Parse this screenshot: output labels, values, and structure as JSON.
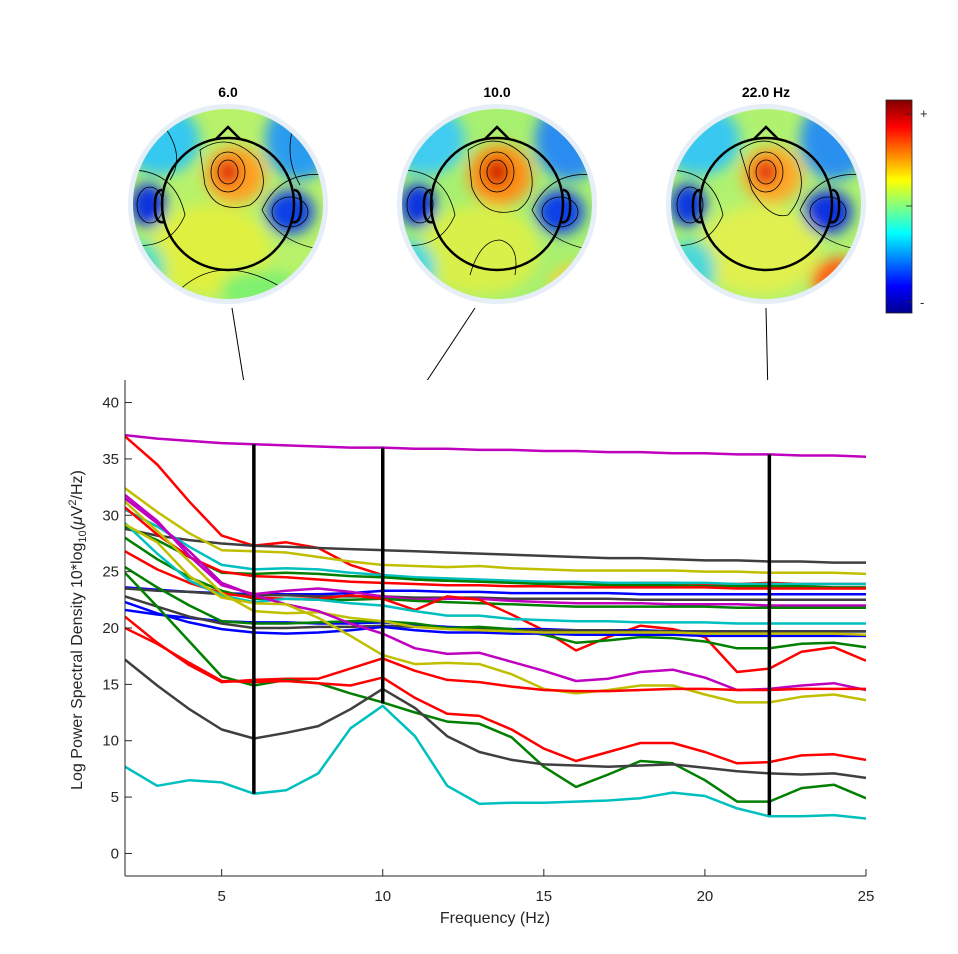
{
  "chart_data": {
    "type": "line",
    "xlabel": "Frequency (Hz)",
    "ylabel_parts": {
      "a": "Log Power Spectral Density 10*log",
      "sub": "10",
      "b": "(",
      "mu": "μ",
      "c": "V",
      "sup": "2",
      "d": "/Hz)"
    },
    "xlim": [
      2,
      25
    ],
    "ylim": [
      -2,
      42
    ],
    "xticks": [
      5,
      10,
      15,
      20,
      25
    ],
    "yticks": [
      0,
      5,
      10,
      15,
      20,
      25,
      30,
      35,
      40
    ],
    "grid": false,
    "x": [
      2,
      3,
      4,
      5,
      6,
      7,
      8,
      9,
      10,
      11,
      12,
      13,
      14,
      15,
      16,
      17,
      18,
      19,
      20,
      21,
      22,
      23,
      24,
      25
    ],
    "series": [
      {
        "color": "#BF00BF",
        "values": [
          37.1,
          36.8,
          36.6,
          36.4,
          36.3,
          36.2,
          36.1,
          36.0,
          36.0,
          35.9,
          35.9,
          35.8,
          35.8,
          35.7,
          35.7,
          35.6,
          35.6,
          35.5,
          35.5,
          35.4,
          35.4,
          35.3,
          35.3,
          35.2
        ]
      },
      {
        "color": "#FF0000",
        "values": [
          37.0,
          34.5,
          31.2,
          28.2,
          27.3,
          27.6,
          27.1,
          25.6,
          24.7,
          24.3,
          24.2,
          24.2,
          24.1,
          24.0,
          23.9,
          23.9,
          24.0,
          24.0,
          23.9,
          23.9,
          24.0,
          23.9,
          23.9,
          23.9
        ]
      },
      {
        "color": "#3F3F3F",
        "values": [
          28.8,
          28.2,
          27.8,
          27.5,
          27.3,
          27.2,
          27.1,
          27.0,
          26.9,
          26.8,
          26.7,
          26.6,
          26.5,
          26.4,
          26.3,
          26.2,
          26.2,
          26.1,
          26.0,
          26.0,
          25.9,
          25.9,
          25.8,
          25.8
        ]
      },
      {
        "color": "#BFBF00",
        "values": [
          32.4,
          30.3,
          28.4,
          26.9,
          26.8,
          26.7,
          26.3,
          25.9,
          25.6,
          25.5,
          25.4,
          25.5,
          25.3,
          25.2,
          25.1,
          25.1,
          25.1,
          25.1,
          25.0,
          25.0,
          24.9,
          24.9,
          24.9,
          24.8
        ]
      },
      {
        "color": "#00BFBF",
        "values": [
          30.5,
          29.0,
          27.2,
          25.6,
          25.2,
          25.3,
          25.2,
          24.9,
          24.7,
          24.5,
          24.4,
          24.3,
          24.2,
          24.1,
          24.1,
          24.0,
          24.0,
          24.0,
          24.0,
          23.9,
          23.9,
          23.9,
          23.9,
          23.9
        ]
      },
      {
        "color": "#007F00",
        "values": [
          29.0,
          27.8,
          26.3,
          24.9,
          24.8,
          24.9,
          24.8,
          24.6,
          24.5,
          24.3,
          24.2,
          24.1,
          24.0,
          23.9,
          23.9,
          23.8,
          23.8,
          23.8,
          23.7,
          23.7,
          23.7,
          23.7,
          23.6,
          23.6
        ]
      },
      {
        "color": "#FF0000",
        "values": [
          30.7,
          28.3,
          26.3,
          25.0,
          24.6,
          24.5,
          24.3,
          24.1,
          24.0,
          23.9,
          23.8,
          23.8,
          23.7,
          23.7,
          23.6,
          23.6,
          23.6,
          23.6,
          23.6,
          23.5,
          23.5,
          23.5,
          23.5,
          23.5
        ]
      },
      {
        "color": "#0000FF",
        "values": [
          23.6,
          23.4,
          23.2,
          23.1,
          23.0,
          23.0,
          23.0,
          23.1,
          23.3,
          23.3,
          23.2,
          23.2,
          23.1,
          23.1,
          23.1,
          23.1,
          23.0,
          23.0,
          23.0,
          23.0,
          23.0,
          23.0,
          23.0,
          23.0
        ]
      },
      {
        "color": "#3F3F3F",
        "values": [
          23.5,
          23.3,
          23.2,
          23.0,
          22.9,
          22.9,
          22.8,
          22.8,
          22.8,
          22.7,
          22.7,
          22.7,
          22.6,
          22.6,
          22.6,
          22.6,
          22.5,
          22.5,
          22.5,
          22.5,
          22.5,
          22.5,
          22.5,
          22.5
        ]
      },
      {
        "color": "#BF00BF",
        "values": [
          31.8,
          29.5,
          26.4,
          23.8,
          23.0,
          23.3,
          23.5,
          23.2,
          22.8,
          22.5,
          22.6,
          22.6,
          22.4,
          22.3,
          22.2,
          22.2,
          22.2,
          22.1,
          22.1,
          22.1,
          22.0,
          22.0,
          22.0,
          22.0
        ]
      },
      {
        "color": "#007F00",
        "values": [
          28.0,
          26.1,
          24.5,
          23.3,
          22.6,
          22.6,
          22.5,
          22.5,
          22.6,
          22.4,
          22.3,
          22.2,
          22.1,
          22.0,
          21.9,
          21.9,
          21.9,
          21.9,
          21.9,
          21.8,
          21.8,
          21.8,
          21.8,
          21.8
        ]
      },
      {
        "color": "#FF0000",
        "values": [
          26.8,
          25.2,
          24.0,
          23.1,
          22.7,
          22.6,
          22.6,
          22.9,
          22.6,
          21.6,
          22.8,
          22.5,
          21.2,
          19.8,
          18.0,
          19.2,
          20.2,
          19.9,
          19.2,
          16.1,
          16.4,
          17.9,
          18.3,
          17.1
        ]
      },
      {
        "color": "#00BFBF",
        "values": [
          29.3,
          26.6,
          24.2,
          22.9,
          22.3,
          22.6,
          22.5,
          22.2,
          22.0,
          21.5,
          21.1,
          21.1,
          20.8,
          20.7,
          20.6,
          20.6,
          20.5,
          20.5,
          20.5,
          20.4,
          20.4,
          20.4,
          20.4,
          20.4
        ]
      },
      {
        "color": "#0000FF",
        "values": [
          21.6,
          21.2,
          20.9,
          20.6,
          20.5,
          20.5,
          20.4,
          20.4,
          20.5,
          20.3,
          20.1,
          20.0,
          19.9,
          19.9,
          19.8,
          19.8,
          19.8,
          19.7,
          19.7,
          19.7,
          19.7,
          19.7,
          19.7,
          19.7
        ]
      },
      {
        "color": "#3F3F3F",
        "values": [
          22.8,
          21.9,
          21.0,
          20.4,
          20.0,
          20.0,
          20.1,
          20.1,
          20.2,
          20.1,
          20.0,
          19.9,
          19.8,
          19.8,
          19.8,
          19.8,
          19.7,
          19.7,
          19.7,
          19.7,
          19.7,
          19.7,
          19.7,
          19.7
        ]
      },
      {
        "color": "#007F00",
        "values": [
          25.4,
          23.6,
          22.0,
          20.6,
          20.4,
          20.4,
          20.5,
          20.6,
          20.6,
          20.4,
          20.0,
          20.1,
          19.9,
          19.4,
          18.7,
          18.9,
          19.2,
          19.1,
          18.8,
          18.2,
          18.2,
          18.6,
          18.7,
          18.3
        ]
      },
      {
        "color": "#0000FF",
        "values": [
          22.3,
          21.3,
          20.5,
          19.9,
          19.6,
          19.5,
          19.6,
          19.8,
          20.1,
          19.8,
          19.6,
          19.6,
          19.5,
          19.5,
          19.4,
          19.4,
          19.4,
          19.4,
          19.3,
          19.3,
          19.3,
          19.3,
          19.3,
          19.3
        ]
      },
      {
        "color": "#BFBF00",
        "values": [
          31.2,
          28.6,
          25.9,
          23.1,
          21.5,
          21.3,
          21.4,
          20.9,
          20.6,
          20.1,
          19.9,
          19.8,
          19.7,
          19.6,
          19.6,
          19.6,
          19.6,
          19.6,
          19.5,
          19.5,
          19.5,
          19.5,
          19.5,
          19.4
        ]
      },
      {
        "color": "#BF00BF",
        "values": [
          31.5,
          29.3,
          26.8,
          24.0,
          22.9,
          22.1,
          21.5,
          20.4,
          19.5,
          18.2,
          17.7,
          17.8,
          17.0,
          16.2,
          15.3,
          15.5,
          16.1,
          16.3,
          15.6,
          14.5,
          14.6,
          14.9,
          15.1,
          14.5
        ]
      },
      {
        "color": "#BFBF00",
        "values": [
          29.2,
          27.6,
          24.6,
          22.7,
          22.2,
          22.1,
          20.9,
          19.3,
          17.6,
          16.8,
          16.9,
          16.8,
          15.9,
          14.6,
          14.2,
          14.5,
          14.9,
          14.9,
          14.1,
          13.4,
          13.4,
          13.9,
          14.1,
          13.6
        ]
      },
      {
        "color": "#FF0000",
        "values": [
          21.0,
          18.7,
          16.7,
          15.2,
          15.4,
          15.5,
          15.5,
          16.4,
          17.3,
          16.2,
          15.4,
          15.2,
          14.8,
          14.5,
          14.4,
          14.4,
          14.5,
          14.6,
          14.6,
          14.5,
          14.5,
          14.6,
          14.6,
          14.6
        ]
      },
      {
        "color": "#007F00",
        "values": [
          24.9,
          21.9,
          18.8,
          15.7,
          14.9,
          15.4,
          15.1,
          14.2,
          13.4,
          12.5,
          11.7,
          11.5,
          10.3,
          7.7,
          5.9,
          7.0,
          8.2,
          8.0,
          6.5,
          4.6,
          4.6,
          5.8,
          6.1,
          4.9
        ]
      },
      {
        "color": "#FF0000",
        "values": [
          20.0,
          18.6,
          16.9,
          15.3,
          15.2,
          15.3,
          15.1,
          14.9,
          15.6,
          13.8,
          12.4,
          12.2,
          11.0,
          9.3,
          8.2,
          9.0,
          9.8,
          9.8,
          9.0,
          8.0,
          8.1,
          8.7,
          8.8,
          8.3
        ]
      },
      {
        "color": "#3F3F3F",
        "values": [
          17.2,
          14.9,
          12.8,
          11.0,
          10.2,
          10.7,
          11.3,
          12.8,
          14.6,
          12.9,
          10.4,
          9.0,
          8.3,
          7.9,
          7.8,
          7.7,
          7.8,
          7.9,
          7.6,
          7.3,
          7.1,
          7.0,
          7.1,
          6.7
        ]
      },
      {
        "color": "#00BFBF",
        "values": [
          7.7,
          6.0,
          6.5,
          6.3,
          5.3,
          5.6,
          7.1,
          11.1,
          13.1,
          10.4,
          6.0,
          4.4,
          4.5,
          4.5,
          4.6,
          4.7,
          4.9,
          5.4,
          5.1,
          4.0,
          3.3,
          3.3,
          3.4,
          3.1
        ]
      }
    ],
    "markers": [
      {
        "freq": 6.0,
        "ymin": 5.3,
        "ymax": 36.3
      },
      {
        "freq": 10.0,
        "ymin": 13.3,
        "ymax": 36.0
      },
      {
        "freq": 22.0,
        "ymin": 3.4,
        "ymax": 35.4
      }
    ],
    "topomaps": [
      {
        "title": "6.0"
      },
      {
        "title": "10.0"
      },
      {
        "title": "22.0 Hz"
      }
    ],
    "colorbar": {
      "max_label": "+",
      "min_label": "-"
    }
  }
}
